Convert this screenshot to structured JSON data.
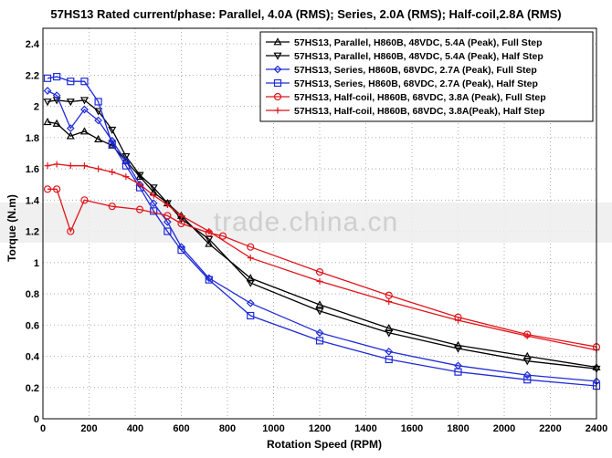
{
  "chart_data": {
    "type": "line",
    "title": "57HS13 Rated current/phase: Parallel, 4.0A (RMS); Series, 2.0A (RMS); Half-coil,2.8A (RMS)",
    "xlabel": "Rotation Speed (RPM)",
    "ylabel": "Torque (N.m)",
    "xlim": [
      0,
      2400
    ],
    "ylim": [
      0,
      2.5
    ],
    "xticks": [
      "0",
      "200",
      "400",
      "600",
      "800",
      "1000",
      "1200",
      "1400",
      "1600",
      "1800",
      "2000",
      "2200",
      "2400"
    ],
    "yticks": [
      "0",
      "0.2",
      "0.4",
      "0.6",
      "0.8",
      "1",
      "1.2",
      "1.4",
      "1.6",
      "1.8",
      "2",
      "2.2",
      "2.4"
    ],
    "grid": true,
    "legend_position": "top-right",
    "watermark": "trade.china.cn",
    "series": [
      {
        "name": "57HS13, Parallel, H860B, 48VDC, 5.4A (Peak), Full Step",
        "color": "#000000",
        "marker": "triangle-up",
        "x": [
          20,
          60,
          120,
          180,
          240,
          300,
          360,
          420,
          480,
          540,
          600,
          720,
          900,
          1200,
          1500,
          1800,
          2100,
          2400
        ],
        "y": [
          1.9,
          1.89,
          1.81,
          1.84,
          1.79,
          1.75,
          1.65,
          1.55,
          1.45,
          1.38,
          1.3,
          1.12,
          0.9,
          0.73,
          0.58,
          0.47,
          0.4,
          0.33
        ]
      },
      {
        "name": "57HS13, Parallel, H860B, 48VDC, 5.4A (Peak), Half Step",
        "color": "#000000",
        "marker": "triangle-down",
        "x": [
          20,
          60,
          120,
          180,
          240,
          300,
          360,
          420,
          480,
          540,
          600,
          720,
          900,
          1200,
          1500,
          1800,
          2100,
          2400
        ],
        "y": [
          2.03,
          2.04,
          2.03,
          2.04,
          1.97,
          1.85,
          1.68,
          1.56,
          1.48,
          1.38,
          1.28,
          1.15,
          0.87,
          0.69,
          0.55,
          0.45,
          0.37,
          0.32
        ]
      },
      {
        "name": "57HS13, Series, H860B, 68VDC, 2.7A (Peak), Full Step",
        "color": "#1f2bd8",
        "marker": "diamond",
        "x": [
          20,
          60,
          120,
          180,
          240,
          300,
          360,
          420,
          480,
          540,
          600,
          720,
          900,
          1200,
          1500,
          1800,
          2100,
          2400
        ],
        "y": [
          2.1,
          2.07,
          1.86,
          1.98,
          1.91,
          1.78,
          1.65,
          1.5,
          1.38,
          1.26,
          1.1,
          0.9,
          0.74,
          0.55,
          0.43,
          0.34,
          0.28,
          0.24
        ]
      },
      {
        "name": "57HS13, Series, H860B, 68VDC, 2.7A (Peak), Half Step",
        "color": "#1f2bd8",
        "marker": "square",
        "x": [
          20,
          60,
          120,
          180,
          240,
          300,
          360,
          420,
          480,
          540,
          600,
          720,
          900,
          1200,
          1500,
          1800,
          2100,
          2400
        ],
        "y": [
          2.18,
          2.19,
          2.16,
          2.16,
          2.03,
          1.76,
          1.62,
          1.48,
          1.33,
          1.2,
          1.08,
          0.89,
          0.66,
          0.5,
          0.38,
          0.3,
          0.25,
          0.21
        ]
      },
      {
        "name": "57HS13, Half-coil, H860B, 68VDC, 3.8A (Peak), Full Step",
        "color": "#e0141a",
        "marker": "circle",
        "x": [
          20,
          60,
          120,
          180,
          300,
          420,
          540,
          600,
          720,
          780,
          900,
          1200,
          1500,
          1800,
          2100,
          2400
        ],
        "y": [
          1.47,
          1.47,
          1.2,
          1.4,
          1.36,
          1.34,
          1.3,
          1.25,
          1.19,
          1.17,
          1.1,
          0.94,
          0.79,
          0.65,
          0.54,
          0.46
        ]
      },
      {
        "name": "57HS13, Half-coil, H860B, 68VDC, 3.8A(Peak), Half Step",
        "color": "#e0141a",
        "marker": "plus",
        "x": [
          20,
          60,
          120,
          180,
          240,
          300,
          360,
          420,
          480,
          540,
          600,
          720,
          900,
          1200,
          1500,
          1800,
          2100,
          2400
        ],
        "y": [
          1.62,
          1.63,
          1.62,
          1.62,
          1.6,
          1.58,
          1.55,
          1.5,
          1.43,
          1.37,
          1.3,
          1.2,
          1.03,
          0.88,
          0.75,
          0.63,
          0.53,
          0.44
        ]
      }
    ]
  }
}
